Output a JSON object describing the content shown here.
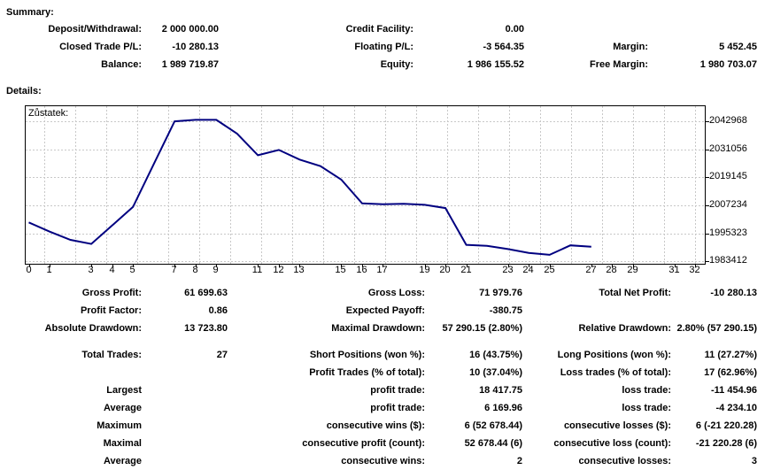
{
  "summary": {
    "heading": "Summary:",
    "rows": [
      [
        "Deposit/Withdrawal:",
        "2 000 000.00",
        "Credit Facility:",
        "0.00",
        "",
        ""
      ],
      [
        "Closed Trade P/L:",
        "-10 280.13",
        "Floating P/L:",
        "-3 564.35",
        "Margin:",
        "5 452.45"
      ],
      [
        "Balance:",
        "1 989 719.87",
        "Equity:",
        "1 986 155.52",
        "Free Margin:",
        "1 980 703.07"
      ]
    ]
  },
  "details": {
    "heading": "Details:"
  },
  "chart_data": {
    "type": "line",
    "title": "Zůstatek:",
    "xlabel": "",
    "ylabel": "",
    "x": [
      0,
      1,
      2,
      3,
      4,
      5,
      6,
      7,
      8,
      9,
      10,
      11,
      12,
      13,
      14,
      15,
      16,
      17,
      18,
      19,
      20,
      21,
      22,
      23,
      24,
      25,
      26,
      27
    ],
    "series": [
      {
        "name": "Zůstatek (balance)",
        "values": [
          2000000,
          1996100,
          1992600,
          1990888,
          1998700,
          2006600,
          2024800,
          2042900,
          2043566,
          2043566,
          2037700,
          2028540,
          2030800,
          2026700,
          2023900,
          2018200,
          2008100,
          2007700,
          2007900,
          2007496,
          2006100,
          1990500,
          1990100,
          1988700,
          1987100,
          1986276,
          1990300,
          1989720
        ]
      }
    ],
    "x_ticks": [
      0,
      1,
      3,
      4,
      5,
      7,
      8,
      9,
      11,
      12,
      13,
      15,
      16,
      17,
      19,
      20,
      21,
      23,
      24,
      25,
      27,
      28,
      29,
      31,
      32
    ],
    "y_ticks": [
      2042968,
      2031056,
      2019145,
      2007234,
      1995323,
      1983412
    ],
    "xlim": [
      -0.15,
      32.45
    ],
    "ylim": [
      1982470,
      2049340
    ],
    "grid": "dashed",
    "legend_position": "top-left",
    "line_color": "#000080",
    "grid_color": "#c8c8c8",
    "axis_color": "#000000"
  },
  "stats": {
    "rows": [
      [
        "Gross Profit:",
        "61 699.63",
        "Gross Loss:",
        "71 979.76",
        "Total Net Profit:",
        "-10 280.13"
      ],
      [
        "Profit Factor:",
        "0.86",
        "Expected Payoff:",
        "-380.75",
        "",
        ""
      ],
      [
        "Absolute Drawdown:",
        "13 723.80",
        "Maximal Drawdown:",
        "57 290.15 (2.80%)",
        "Relative Drawdown:",
        "2.80% (57 290.15)"
      ],
      [
        "Total Trades:",
        "27",
        "Short Positions (won %):",
        "16 (43.75%)",
        "Long Positions (won %):",
        "11 (27.27%)"
      ],
      [
        "",
        "",
        "Profit Trades (% of total):",
        "10 (37.04%)",
        "Loss trades (% of total):",
        "17 (62.96%)"
      ],
      [
        "Largest",
        "",
        "profit trade:",
        "18 417.75",
        "loss trade:",
        "-11 454.96"
      ],
      [
        "Average",
        "",
        "profit trade:",
        "6 169.96",
        "loss trade:",
        "-4 234.10"
      ],
      [
        "Maximum",
        "",
        "consecutive wins ($):",
        "6 (52 678.44)",
        "consecutive losses ($):",
        "6 (-21 220.28)"
      ],
      [
        "Maximal",
        "",
        "consecutive profit (count):",
        "52 678.44 (6)",
        "consecutive loss (count):",
        "-21 220.28 (6)"
      ],
      [
        "Average",
        "",
        "consecutive wins:",
        "2",
        "consecutive losses:",
        "3"
      ]
    ]
  }
}
